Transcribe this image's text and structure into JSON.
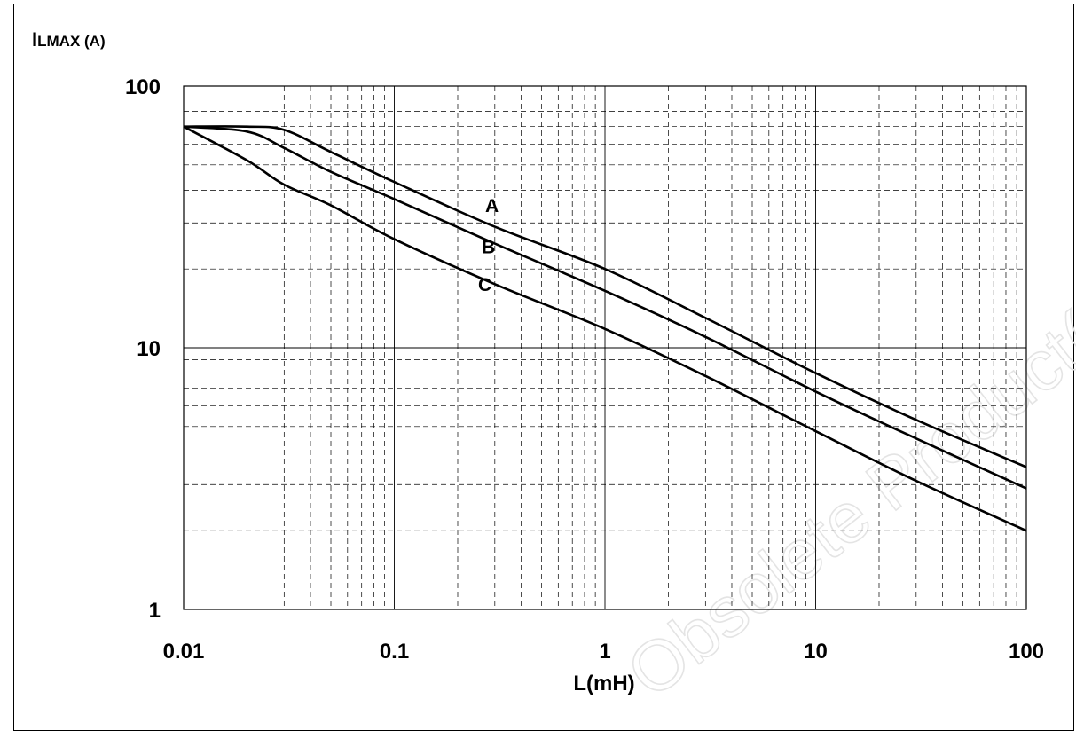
{
  "chart_data": {
    "type": "line",
    "x_scale": "log",
    "y_scale": "log",
    "xlim": [
      0.01,
      100
    ],
    "ylim": [
      1,
      100
    ],
    "ylabel_main": "I",
    "ylabel_rest": "LMAX (A)",
    "xlabel": "L(mH)",
    "x_ticks": [
      "0.01",
      "0.1",
      "1",
      "10",
      "100"
    ],
    "y_ticks": [
      "1",
      "10",
      "100"
    ],
    "grid": true,
    "series": [
      {
        "name": "A",
        "x": [
          0.01,
          0.02,
          0.03,
          0.05,
          0.1,
          0.3,
          1,
          3,
          10,
          30,
          100
        ],
        "y": [
          70,
          70,
          68,
          56,
          43,
          29,
          20,
          13,
          8,
          5.3,
          3.5
        ]
      },
      {
        "name": "B",
        "x": [
          0.01,
          0.02,
          0.03,
          0.05,
          0.1,
          0.3,
          1,
          3,
          10,
          30,
          100
        ],
        "y": [
          70,
          67,
          58,
          47,
          37,
          25,
          16.5,
          11,
          6.8,
          4.5,
          2.9
        ]
      },
      {
        "name": "C",
        "x": [
          0.01,
          0.02,
          0.03,
          0.05,
          0.1,
          0.3,
          1,
          3,
          10,
          30,
          100
        ],
        "y": [
          70,
          52,
          42,
          35,
          26,
          17.5,
          11.8,
          7.8,
          4.8,
          3.1,
          2.0
        ]
      }
    ],
    "annotations": [
      {
        "text": "A",
        "x": 0.27,
        "y": 33
      },
      {
        "text": "B",
        "x": 0.26,
        "y": 23
      },
      {
        "text": "C",
        "x": 0.25,
        "y": 16.5
      }
    ],
    "watermark": "Obsolete Product(s)"
  }
}
